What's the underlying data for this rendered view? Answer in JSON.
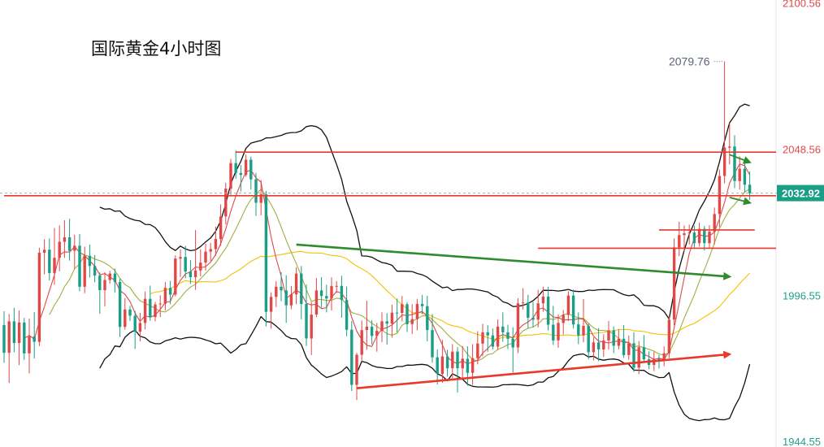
{
  "chart_data": {
    "type": "candlestick",
    "title": "国际黄金4小时图",
    "ylim": [
      1941.0,
      2103.5
    ],
    "y_axis": {
      "side": "right",
      "tick_labels": [
        {
          "value": 2100.56,
          "text": "2100.56",
          "color": "#e04848"
        },
        {
          "value": 2048.56,
          "text": "2048.56",
          "color": "#e04848"
        },
        {
          "value": 1996.55,
          "text": "1996.55",
          "color": "#22a08a"
        },
        {
          "value": 1944.55,
          "text": "1944.55",
          "color": "#22a08a"
        }
      ]
    },
    "current_price": {
      "value": 2032.92,
      "text": "2032.92",
      "color": "#1a9e86"
    },
    "high_annotation": {
      "value": 2079.76,
      "text": "2079.76"
    },
    "colors": {
      "up": "#e04848",
      "down": "#1a9e86",
      "ma_short": "#e04848",
      "ma_mid": "#a3ad3e",
      "ma_long": "#f2c200",
      "bollinger": "#111111",
      "resistance_line": "#e8392c",
      "trend_down": "#2e8b2e",
      "trend_up": "#e8392c"
    },
    "candles": [
      [
        1986.0,
        1990.9,
        1972.5,
        1976.1
      ],
      [
        1976.1,
        1989.9,
        1965.4,
        1987.3
      ],
      [
        1987.3,
        1992.1,
        1976.3,
        1979.6
      ],
      [
        1979.6,
        1991.2,
        1971.7,
        1986.9
      ],
      [
        1986.9,
        1988.5,
        1973.6,
        1975.9
      ],
      [
        1975.9,
        1988.3,
        1968.8,
        1981.9
      ],
      [
        1981.9,
        1990.6,
        1974.1,
        1980.0
      ],
      [
        1980.0,
        2013.5,
        1978.5,
        2011.7
      ],
      [
        2011.7,
        2016.5,
        2004.0,
        2012.8
      ],
      [
        2012.8,
        2016.8,
        2001.8,
        2004.5
      ],
      [
        2004.5,
        2020.5,
        2000.3,
        2009.9
      ],
      [
        2009.9,
        2021.4,
        2005.1,
        2015.6
      ],
      [
        2015.6,
        2023.3,
        2009.9,
        2017.2
      ],
      [
        2017.2,
        2023.8,
        2008.9,
        2012.4
      ],
      [
        2012.4,
        2018.1,
        2005.9,
        2014.2
      ],
      [
        2014.2,
        2018.3,
        1998.0,
        1999.6
      ],
      [
        1999.6,
        2013.9,
        1997.3,
        2010.6
      ],
      [
        2010.6,
        2014.6,
        2002.9,
        2007.0
      ],
      [
        2007.0,
        2010.9,
        2001.2,
        2003.6
      ],
      [
        2003.6,
        2004.7,
        1990.0,
        1998.4
      ],
      [
        1998.4,
        2004.8,
        1992.6,
        2002.0
      ],
      [
        2002.0,
        2005.3,
        2000.7,
        2004.3
      ],
      [
        2004.3,
        2006.1,
        1997.6,
        2001.3
      ],
      [
        2001.3,
        2002.5,
        1981.7,
        1985.3
      ],
      [
        1985.3,
        1995.6,
        1984.3,
        1991.5
      ],
      [
        1991.5,
        1992.8,
        1987.4,
        1989.3
      ],
      [
        1989.3,
        1991.0,
        1977.5,
        1983.6
      ],
      [
        1983.6,
        1990.3,
        1980.2,
        1986.7
      ],
      [
        1986.7,
        1997.9,
        1984.5,
        1995.3
      ],
      [
        1995.3,
        2000.0,
        1987.5,
        1988.8
      ],
      [
        1988.8,
        1994.2,
        1987.3,
        1993.3
      ],
      [
        1993.3,
        1996.6,
        1988.8,
        1993.6
      ],
      [
        1993.6,
        2001.3,
        1991.2,
        1999.2
      ],
      [
        1999.2,
        2001.7,
        1993.4,
        1996.8
      ],
      [
        1996.8,
        2010.8,
        1996.2,
        2009.6
      ],
      [
        2009.6,
        2012.9,
        2003.1,
        2010.2
      ],
      [
        2010.2,
        2014.2,
        2002.6,
        2005.0
      ],
      [
        2005.0,
        2009.1,
        2000.6,
        2003.0
      ],
      [
        2003.0,
        2019.8,
        1998.5,
        2005.4
      ],
      [
        2005.4,
        2012.9,
        2003.3,
        2008.2
      ],
      [
        2008.2,
        2014.9,
        2005.4,
        2012.1
      ],
      [
        2012.1,
        2015.2,
        2008.8,
        2013.0
      ],
      [
        2013.0,
        2021.0,
        2010.6,
        2016.6
      ],
      [
        2016.6,
        2028.9,
        2014.2,
        2024.6
      ],
      [
        2024.6,
        2036.6,
        2021.8,
        2034.5
      ],
      [
        2034.5,
        2045.1,
        2032.3,
        2043.6
      ],
      [
        2043.6,
        2048.1,
        2038.1,
        2040.1
      ],
      [
        2040.1,
        2042.9,
        2033.5,
        2039.4
      ],
      [
        2039.4,
        2046.6,
        2038.8,
        2044.8
      ],
      [
        2044.8,
        2045.9,
        2034.2,
        2037.8
      ],
      [
        2037.8,
        2040.1,
        2024.8,
        2029.5
      ],
      [
        2029.5,
        2037.6,
        2025.0,
        2032.5
      ],
      [
        2032.5,
        2033.7,
        1985.5,
        1990.7
      ],
      [
        1990.7,
        1997.6,
        1984.7,
        1996.0
      ],
      [
        1996.0,
        2001.6,
        1992.4,
        1999.6
      ],
      [
        1999.6,
        2004.8,
        1994.5,
        1998.3
      ],
      [
        1998.3,
        2003.7,
        1986.8,
        1993.0
      ],
      [
        1993.0,
        1999.9,
        1991.6,
        1996.9
      ],
      [
        1996.9,
        2006.5,
        1993.4,
        2004.3
      ],
      [
        2004.3,
        2007.0,
        1988.0,
        1993.5
      ],
      [
        1993.5,
        2000.5,
        1978.5,
        1981.2
      ],
      [
        1981.2,
        1994.1,
        1975.3,
        1989.7
      ],
      [
        1989.7,
        2002.7,
        1988.8,
        1998.3
      ],
      [
        1998.3,
        2003.0,
        1992.2,
        1996.3
      ],
      [
        1996.3,
        2000.3,
        1990.5,
        1995.4
      ],
      [
        1995.4,
        2003.0,
        1991.2,
        1999.8
      ],
      [
        1999.8,
        2001.6,
        1997.4,
        1999.9
      ],
      [
        1999.9,
        2003.5,
        1988.6,
        1994.9
      ],
      [
        1994.9,
        1999.7,
        1982.0,
        1984.3
      ],
      [
        1984.3,
        1987.4,
        1962.5,
        1964.7
      ],
      [
        1964.7,
        1976.1,
        1959.3,
        1975.4
      ],
      [
        1975.4,
        1987.6,
        1973.0,
        1984.2
      ],
      [
        1984.2,
        1994.6,
        1977.2,
        1985.4
      ],
      [
        1985.4,
        1987.7,
        1979.1,
        1982.1
      ],
      [
        1982.1,
        1986.7,
        1976.5,
        1983.9
      ],
      [
        1983.9,
        1990.5,
        1979.9,
        1987.3
      ],
      [
        1987.3,
        1990.2,
        1979.0,
        1986.5
      ],
      [
        1986.5,
        1993.2,
        1981.5,
        1990.4
      ],
      [
        1990.4,
        1995.4,
        1983.4,
        1990.3
      ],
      [
        1990.3,
        1996.3,
        1987.3,
        1993.4
      ],
      [
        1993.4,
        1994.2,
        1983.5,
        1986.3
      ],
      [
        1986.3,
        1993.4,
        1982.8,
        1988.1
      ],
      [
        1988.1,
        1995.3,
        1984.1,
        1993.5
      ],
      [
        1993.5,
        1996.7,
        1989.8,
        1992.7
      ],
      [
        1992.7,
        1996.4,
        1980.2,
        1984.2
      ],
      [
        1984.2,
        1989.9,
        1972.6,
        1974.5
      ],
      [
        1974.5,
        1977.3,
        1964.8,
        1968.6
      ],
      [
        1968.6,
        1980.7,
        1965.4,
        1974.8
      ],
      [
        1974.8,
        1977.2,
        1967.6,
        1970.6
      ],
      [
        1970.6,
        1979.2,
        1967.1,
        1976.5
      ],
      [
        1976.5,
        1978.1,
        1962.0,
        1970.6
      ],
      [
        1970.6,
        1978.5,
        1966.6,
        1974.0
      ],
      [
        1974.0,
        1978.4,
        1964.4,
        1969.0
      ],
      [
        1969.0,
        1979.2,
        1964.7,
        1974.2
      ],
      [
        1974.2,
        1983.8,
        1972.0,
        1979.4
      ],
      [
        1979.4,
        1986.4,
        1974.9,
        1983.4
      ],
      [
        1983.4,
        1985.9,
        1976.5,
        1982.3
      ],
      [
        1982.3,
        1984.7,
        1977.3,
        1978.3
      ],
      [
        1978.3,
        1988.0,
        1977.1,
        1985.4
      ],
      [
        1985.4,
        1990.5,
        1980.0,
        1983.4
      ],
      [
        1983.4,
        1986.1,
        1977.4,
        1981.1
      ],
      [
        1981.1,
        1985.2,
        1969.1,
        1978.0
      ],
      [
        1978.0,
        1995.5,
        1976.0,
        1993.7
      ],
      [
        1993.7,
        1999.1,
        1991.5,
        1994.0
      ],
      [
        1994.0,
        1996.7,
        1984.8,
        1988.6
      ],
      [
        1988.6,
        1994.2,
        1985.2,
        1987.9
      ],
      [
        1987.9,
        1998.5,
        1985.1,
        1993.7
      ],
      [
        1993.7,
        1999.6,
        1990.7,
        1996.1
      ],
      [
        1996.1,
        1999.6,
        1984.0,
        1986.1
      ],
      [
        1986.1,
        1992.8,
        1978.9,
        1980.5
      ],
      [
        1980.5,
        1989.8,
        1977.9,
        1986.7
      ],
      [
        1986.7,
        1991.3,
        1982.6,
        1989.6
      ],
      [
        1989.6,
        1998.0,
        1987.4,
        1996.5
      ],
      [
        1996.5,
        1998.6,
        1984.7,
        1986.2
      ],
      [
        1986.2,
        1990.5,
        1979.2,
        1982.3
      ],
      [
        1982.3,
        1995.2,
        1979.9,
        1985.7
      ],
      [
        1985.7,
        1986.6,
        1973.8,
        1976.3
      ],
      [
        1976.3,
        1981.6,
        1973.4,
        1979.8
      ],
      [
        1979.8,
        1984.9,
        1973.1,
        1977.3
      ],
      [
        1977.3,
        1982.7,
        1974.7,
        1980.5
      ],
      [
        1980.5,
        1987.4,
        1977.2,
        1984.1
      ],
      [
        1984.1,
        1985.5,
        1976.0,
        1978.6
      ],
      [
        1978.6,
        1984.5,
        1977.3,
        1981.1
      ],
      [
        1981.1,
        1986.0,
        1974.3,
        1975.3
      ],
      [
        1975.3,
        1982.3,
        1973.6,
        1979.5
      ],
      [
        1979.5,
        1983.4,
        1969.3,
        1970.8
      ],
      [
        1970.8,
        1980.3,
        1968.5,
        1978.1
      ],
      [
        1978.1,
        1982.4,
        1972.5,
        1973.8
      ],
      [
        1973.8,
        1976.6,
        1970.3,
        1971.8
      ],
      [
        1971.8,
        1976.5,
        1969.6,
        1974.0
      ],
      [
        1974.0,
        1975.3,
        1970.5,
        1973.4
      ],
      [
        1973.4,
        1978.4,
        1971.3,
        1975.9
      ],
      [
        1975.9,
        1989.0,
        1974.2,
        1987.9
      ],
      [
        1987.9,
        2016.8,
        1985.9,
        2013.6
      ],
      [
        2013.6,
        2022.7,
        2010.5,
        2018.0
      ],
      [
        2018.0,
        2021.4,
        2012.1,
        2018.6
      ],
      [
        2018.6,
        2021.7,
        2014.7,
        2018.9
      ],
      [
        2018.9,
        2021.3,
        2013.1,
        2015.1
      ],
      [
        2015.1,
        2022.4,
        2013.9,
        2020.2
      ],
      [
        2020.2,
        2021.2,
        2012.5,
        2015.1
      ],
      [
        2015.1,
        2021.5,
        2013.4,
        2019.2
      ],
      [
        2019.2,
        2027.8,
        2014.6,
        2025.5
      ],
      [
        2025.5,
        2041.3,
        2020.8,
        2039.0
      ],
      [
        2039.0,
        2079.8,
        2036.4,
        2049.1
      ],
      [
        2049.1,
        2057.8,
        2043.1,
        2049.5
      ],
      [
        2049.5,
        2053.5,
        2034.7,
        2037.2
      ],
      [
        2037.2,
        2046.0,
        2034.2,
        2041.6
      ],
      [
        2041.6,
        2044.4,
        2033.2,
        2035.9
      ],
      [
        2035.9,
        2040.6,
        2030.5,
        2032.9
      ]
    ],
    "horizontal_lines": [
      {
        "value": 2047.5,
        "x_from": 46
      },
      {
        "value": 2032.0,
        "x_from": 0
      },
      {
        "value": 2013.3,
        "x_from": 106
      },
      {
        "value": 2019.8,
        "x_from": 130,
        "x_to": 149
      }
    ],
    "trend_lines": [
      {
        "from": [
          58,
          2014.6
        ],
        "to": [
          144,
          2003.2
        ],
        "kind": "down"
      },
      {
        "from": [
          70,
          1963.5
        ],
        "to": [
          144,
          1975.6
        ],
        "kind": "up"
      }
    ],
    "arrows": [
      {
        "from": [
          144,
          2046.6
        ],
        "to": [
          148,
          2043.9
        ]
      },
      {
        "from": [
          144,
          2031.4
        ],
        "to": [
          148,
          2029.5
        ]
      }
    ]
  }
}
